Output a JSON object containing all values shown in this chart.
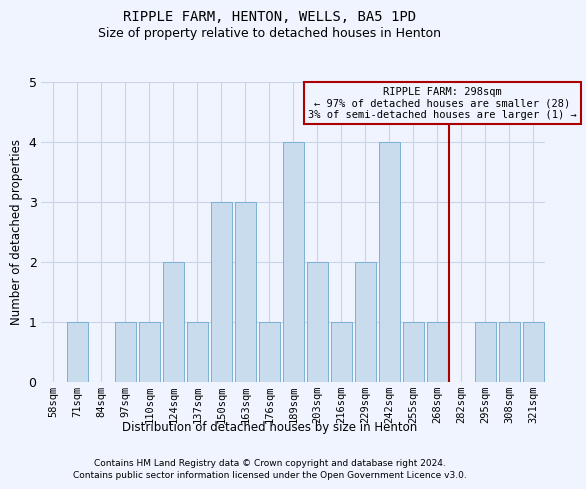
{
  "title": "RIPPLE FARM, HENTON, WELLS, BA5 1PD",
  "subtitle": "Size of property relative to detached houses in Henton",
  "xlabel": "Distribution of detached houses by size in Henton",
  "ylabel": "Number of detached properties",
  "categories": [
    "58sqm",
    "71sqm",
    "84sqm",
    "97sqm",
    "110sqm",
    "124sqm",
    "137sqm",
    "150sqm",
    "163sqm",
    "176sqm",
    "189sqm",
    "203sqm",
    "216sqm",
    "229sqm",
    "242sqm",
    "255sqm",
    "268sqm",
    "282sqm",
    "295sqm",
    "308sqm",
    "321sqm"
  ],
  "values": [
    0,
    1,
    0,
    1,
    1,
    2,
    1,
    3,
    3,
    1,
    4,
    2,
    1,
    2,
    4,
    1,
    1,
    0,
    1,
    1,
    1
  ],
  "bar_color": "#c8dcee",
  "bar_edge_color": "#7ab0d4",
  "vline_pos": 16.5,
  "vline_color": "#aa0000",
  "annotation_text": "RIPPLE FARM: 298sqm\n← 97% of detached houses are smaller (28)\n3% of semi-detached houses are larger (1) →",
  "ylim": [
    0,
    5
  ],
  "yticks": [
    0,
    1,
    2,
    3,
    4,
    5
  ],
  "grid_color": "#c8d4e8",
  "background_color": "#f0f4ff",
  "footer1": "Contains HM Land Registry data © Crown copyright and database right 2024.",
  "footer2": "Contains public sector information licensed under the Open Government Licence v3.0."
}
